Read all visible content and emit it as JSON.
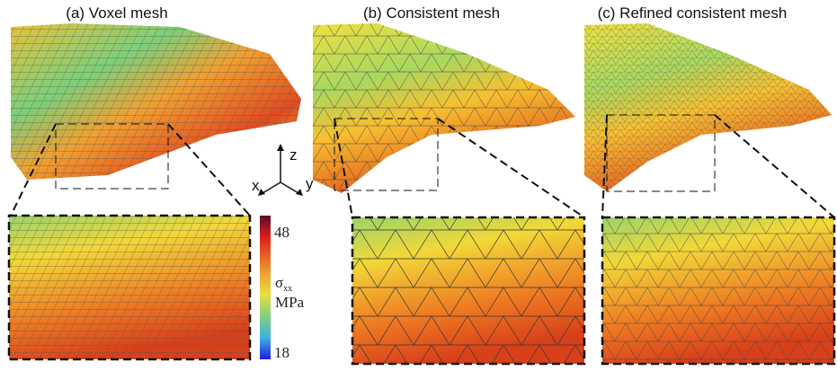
{
  "panels": [
    {
      "title": "(a) Voxel mesh"
    },
    {
      "title": "(b) Consistent mesh"
    },
    {
      "title": "(c) Refined consistent mesh"
    }
  ],
  "colorbar": {
    "max": 48,
    "min": 18,
    "quantity": "σ",
    "subscript": "xx",
    "unit": "MPa"
  },
  "axes": {
    "x": "x",
    "y": "y",
    "z": "z"
  }
}
